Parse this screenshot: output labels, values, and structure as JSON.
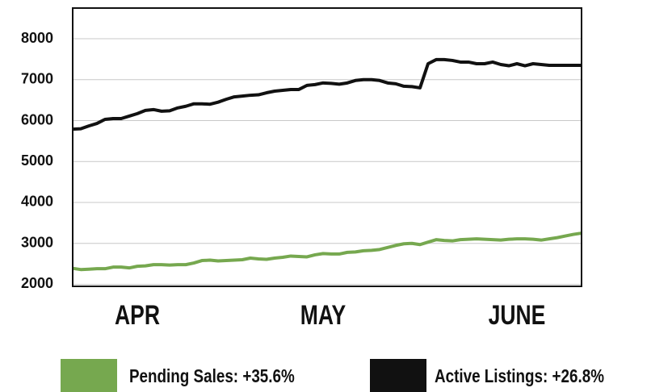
{
  "chart_data": {
    "type": "line",
    "categories": [
      null,
      null,
      null,
      null,
      null,
      null,
      null,
      null,
      "APR",
      null,
      null,
      null,
      null,
      null,
      null,
      null,
      null,
      null,
      null,
      null,
      null,
      null,
      null,
      null,
      null,
      null,
      null,
      null,
      null,
      null,
      null,
      "MAY",
      null,
      null,
      null,
      null,
      null,
      null,
      null,
      null,
      null,
      null,
      null,
      null,
      null,
      null,
      null,
      null,
      null,
      null,
      null,
      null,
      null,
      null,
      null,
      "JUNE",
      null,
      null,
      null,
      null,
      null,
      null,
      null,
      null
    ],
    "series": [
      {
        "name": "Pending Sales: +35.6%",
        "color": "#76a84f",
        "values": [
          2390,
          2360,
          2370,
          2380,
          2380,
          2420,
          2420,
          2400,
          2440,
          2450,
          2480,
          2480,
          2470,
          2480,
          2480,
          2520,
          2580,
          2590,
          2570,
          2580,
          2590,
          2600,
          2640,
          2620,
          2610,
          2640,
          2660,
          2690,
          2680,
          2670,
          2720,
          2750,
          2740,
          2740,
          2780,
          2790,
          2820,
          2830,
          2850,
          2900,
          2950,
          2990,
          3000,
          2970,
          3030,
          3090,
          3070,
          3060,
          3090,
          3100,
          3110,
          3100,
          3090,
          3080,
          3100,
          3110,
          3110,
          3100,
          3080,
          3110,
          3140,
          3180,
          3220,
          3250
        ]
      },
      {
        "name": "Active Listings: +26.8%",
        "color": "#111111",
        "values": [
          5790,
          5800,
          5870,
          5930,
          6030,
          6050,
          6050,
          6110,
          6170,
          6250,
          6270,
          6230,
          6240,
          6310,
          6350,
          6410,
          6410,
          6400,
          6450,
          6520,
          6580,
          6600,
          6620,
          6630,
          6680,
          6720,
          6740,
          6760,
          6760,
          6860,
          6880,
          6920,
          6910,
          6890,
          6920,
          6980,
          7000,
          7000,
          6980,
          6920,
          6900,
          6840,
          6830,
          6800,
          7390,
          7490,
          7490,
          7470,
          7430,
          7430,
          7390,
          7390,
          7430,
          7370,
          7340,
          7390,
          7340,
          7390,
          7370,
          7350,
          7350,
          7350,
          7350,
          7350
        ]
      }
    ],
    "ylim": [
      1950,
      8750
    ],
    "yticks": [
      2000,
      3000,
      4000,
      5000,
      6000,
      7000,
      8000
    ],
    "grid": true
  }
}
